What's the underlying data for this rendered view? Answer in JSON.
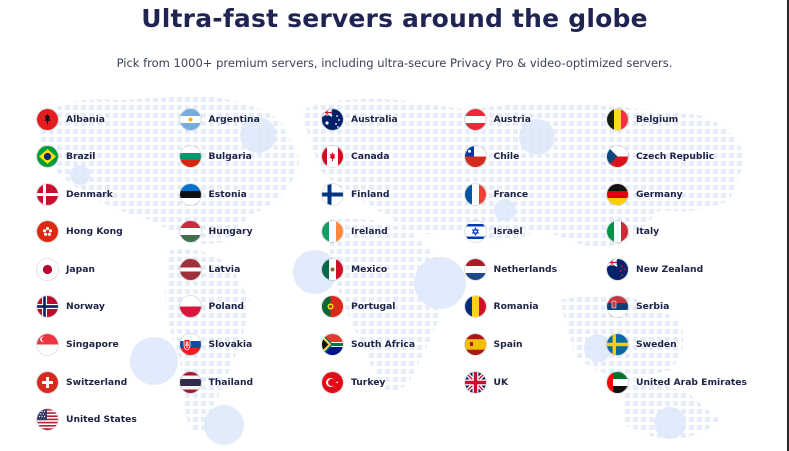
{
  "header": {
    "title": "Ultra-fast servers around the globe",
    "subtitle": "Pick from 1000+ premium servers, including ultra-secure Privacy Pro & video-optimized servers."
  },
  "countries": [
    {
      "name": "Albania",
      "flag": "albania-flag-icon"
    },
    {
      "name": "Argentina",
      "flag": "argentina-flag-icon"
    },
    {
      "name": "Australia",
      "flag": "australia-flag-icon"
    },
    {
      "name": "Austria",
      "flag": "austria-flag-icon"
    },
    {
      "name": "Belgium",
      "flag": "belgium-flag-icon"
    },
    {
      "name": "Brazil",
      "flag": "brazil-flag-icon"
    },
    {
      "name": "Bulgaria",
      "flag": "bulgaria-flag-icon"
    },
    {
      "name": "Canada",
      "flag": "canada-flag-icon"
    },
    {
      "name": "Chile",
      "flag": "chile-flag-icon"
    },
    {
      "name": "Czech Republic",
      "flag": "czech-republic-flag-icon"
    },
    {
      "name": "Denmark",
      "flag": "denmark-flag-icon"
    },
    {
      "name": "Estonia",
      "flag": "estonia-flag-icon"
    },
    {
      "name": "Finland",
      "flag": "finland-flag-icon"
    },
    {
      "name": "France",
      "flag": "france-flag-icon"
    },
    {
      "name": "Germany",
      "flag": "germany-flag-icon"
    },
    {
      "name": "Hong Kong",
      "flag": "hong-kong-flag-icon"
    },
    {
      "name": "Hungary",
      "flag": "hungary-flag-icon"
    },
    {
      "name": "Ireland",
      "flag": "ireland-flag-icon"
    },
    {
      "name": "Israel",
      "flag": "israel-flag-icon"
    },
    {
      "name": "Italy",
      "flag": "italy-flag-icon"
    },
    {
      "name": "Japan",
      "flag": "japan-flag-icon"
    },
    {
      "name": "Latvia",
      "flag": "latvia-flag-icon"
    },
    {
      "name": "Mexico",
      "flag": "mexico-flag-icon"
    },
    {
      "name": "Netherlands",
      "flag": "netherlands-flag-icon"
    },
    {
      "name": "New Zealand",
      "flag": "new-zealand-flag-icon"
    },
    {
      "name": "Norway",
      "flag": "norway-flag-icon"
    },
    {
      "name": "Poland",
      "flag": "poland-flag-icon"
    },
    {
      "name": "Portugal",
      "flag": "portugal-flag-icon"
    },
    {
      "name": "Romania",
      "flag": "romania-flag-icon"
    },
    {
      "name": "Serbia",
      "flag": "serbia-flag-icon"
    },
    {
      "name": "Singapore",
      "flag": "singapore-flag-icon"
    },
    {
      "name": "Slovakia",
      "flag": "slovakia-flag-icon"
    },
    {
      "name": "South Africa",
      "flag": "south-africa-flag-icon"
    },
    {
      "name": "Spain",
      "flag": "spain-flag-icon"
    },
    {
      "name": "Sweden",
      "flag": "sweden-flag-icon"
    },
    {
      "name": "Switzerland",
      "flag": "switzerland-flag-icon"
    },
    {
      "name": "Thailand",
      "flag": "thailand-flag-icon"
    },
    {
      "name": "Turkey",
      "flag": "turkey-flag-icon"
    },
    {
      "name": "UK",
      "flag": "uk-flag-icon"
    },
    {
      "name": "United Arab Emirates",
      "flag": "uae-flag-icon"
    },
    {
      "name": "United States",
      "flag": "usa-flag-icon"
    }
  ],
  "colors": {
    "title": "#1f2452",
    "map_dots": "#e3ebf7",
    "map_bubbles": "#d8e6fb"
  }
}
